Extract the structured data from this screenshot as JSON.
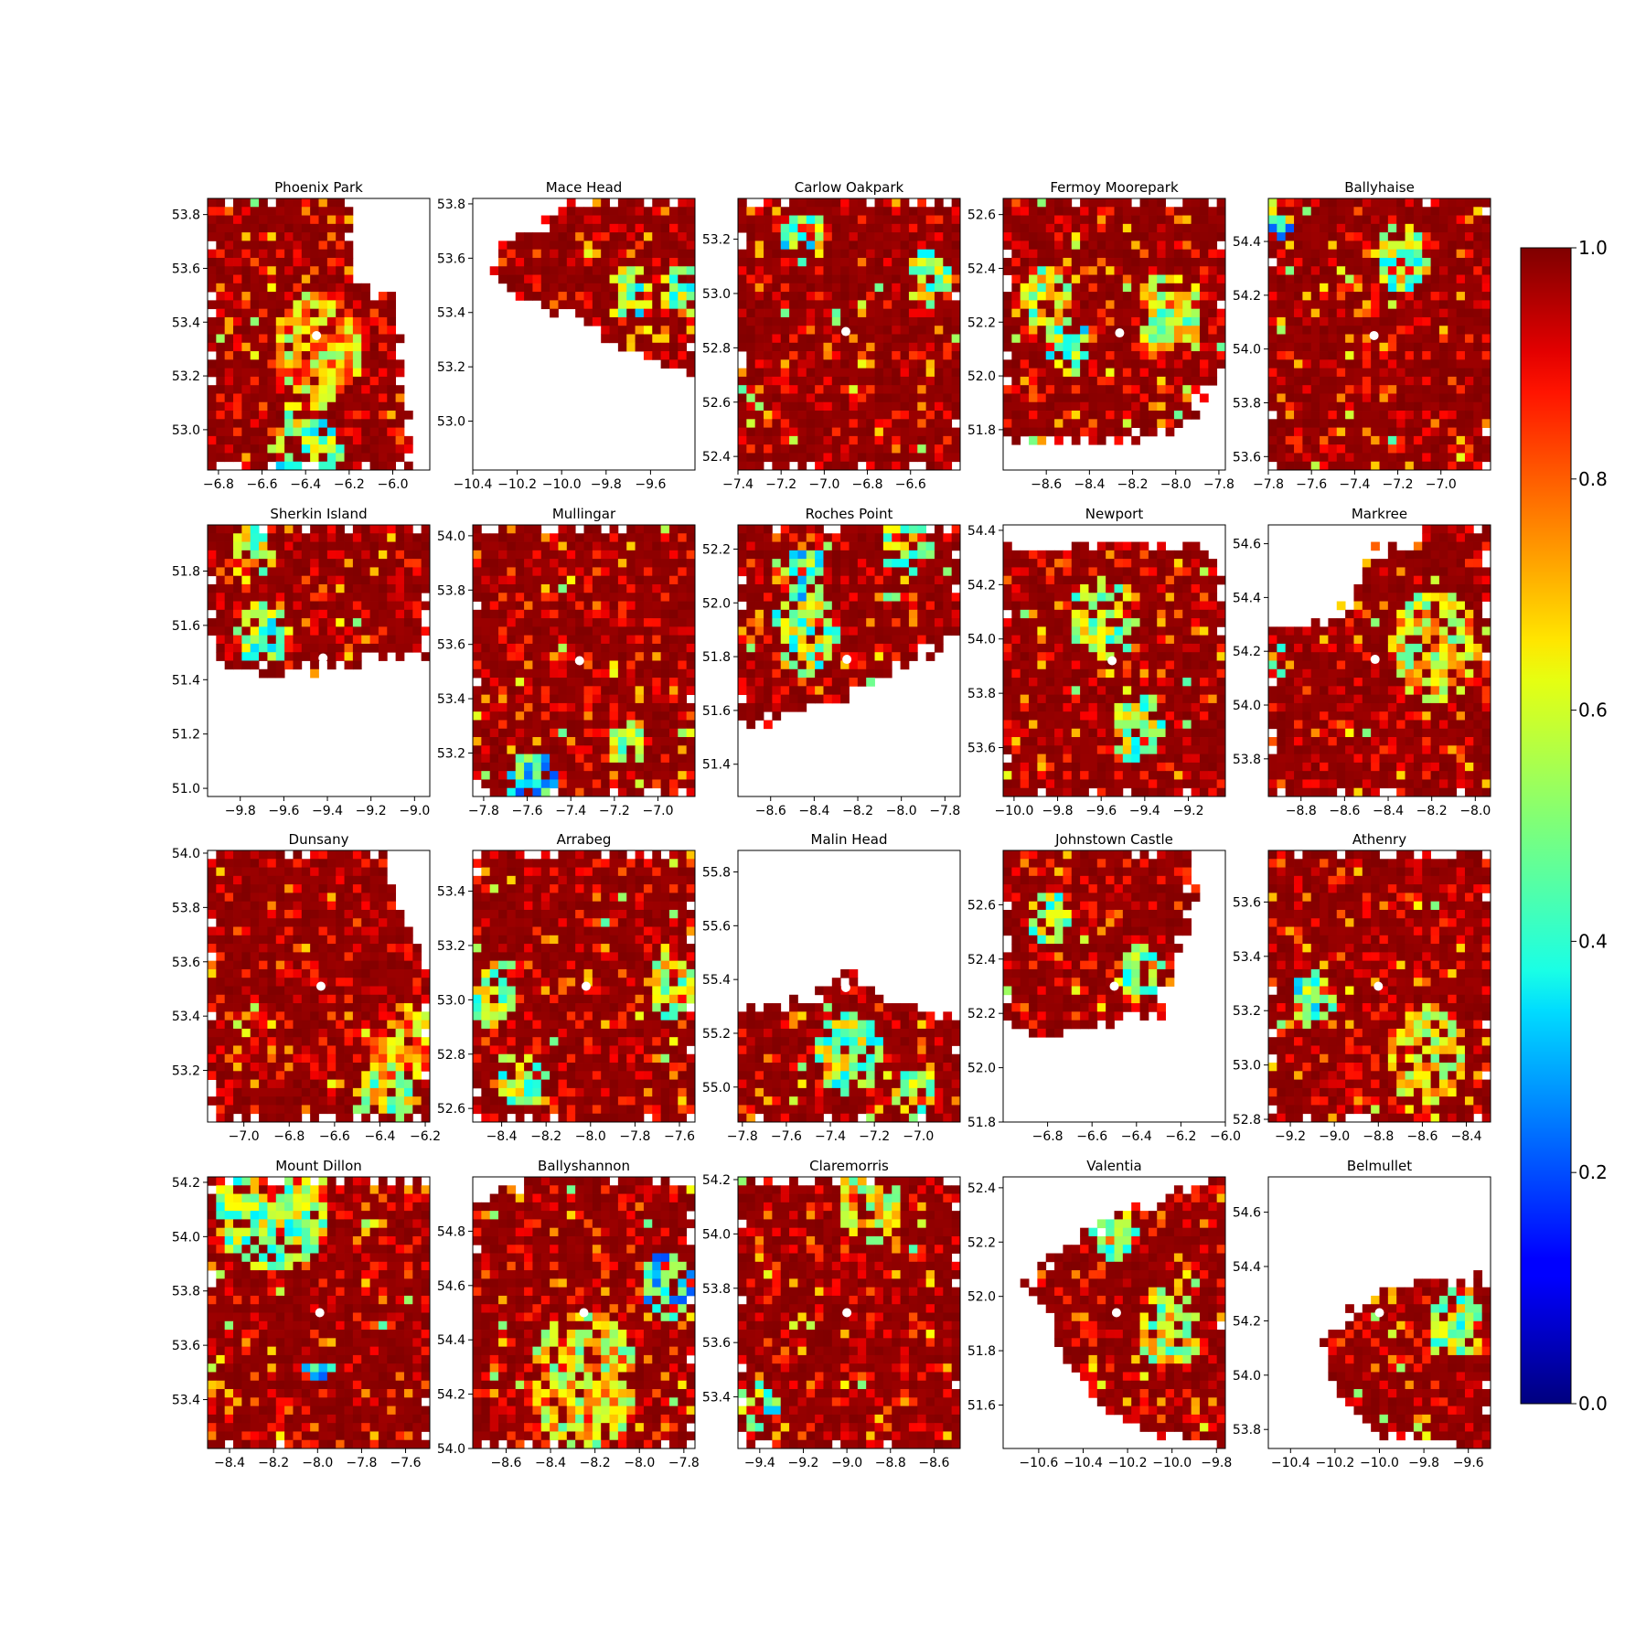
{
  "chart_data": [
    {
      "type": "heatmap",
      "title": "Phoenix Park",
      "xlim": [
        -6.85,
        -5.83
      ],
      "ylim": [
        52.85,
        53.86
      ],
      "xticks": [
        -6.8,
        -6.6,
        -6.4,
        -6.2,
        -6.0
      ],
      "yticks": [
        53.0,
        53.2,
        53.4,
        53.6,
        53.8
      ],
      "station": [
        -6.35,
        53.35
      ],
      "land": [
        [
          0,
          0.0
        ],
        [
          0.64,
          0.0
        ],
        [
          0.64,
          0.33
        ],
        [
          0.85,
          0.35
        ],
        [
          0.85,
          0.6
        ],
        [
          0.92,
          1.0
        ],
        [
          0.0,
          1.0
        ]
      ],
      "hotspots": [
        [
          0.5,
          0.55,
          0.2,
          0.5
        ],
        [
          0.45,
          0.95,
          0.15,
          0.3
        ],
        [
          0.45,
          0.8,
          0.1,
          0.4
        ]
      ]
    },
    {
      "type": "heatmap",
      "title": "Mace Head",
      "xlim": [
        -10.4,
        -9.4
      ],
      "ylim": [
        52.82,
        53.82
      ],
      "xticks": [
        -10.4,
        -10.2,
        -10.0,
        -9.8,
        -9.6
      ],
      "yticks": [
        53.0,
        53.2,
        53.4,
        53.6,
        53.8
      ],
      "station": [
        -9.9,
        53.33
      ],
      "land": [
        [
          0.1,
          0.2
        ],
        [
          0.4,
          0.05
        ],
        [
          0.55,
          0.0
        ],
        [
          1.0,
          0.0
        ],
        [
          1.0,
          0.65
        ],
        [
          0.6,
          0.55
        ],
        [
          0.55,
          0.45
        ],
        [
          0.3,
          0.4
        ],
        [
          0.1,
          0.3
        ]
      ],
      "hotspots": [
        [
          0.7,
          0.35,
          0.1,
          0.3
        ],
        [
          0.95,
          0.35,
          0.1,
          0.35
        ]
      ]
    },
    {
      "type": "heatmap",
      "title": "Carlow Oakpark",
      "xlim": [
        -7.4,
        -6.37
      ],
      "ylim": [
        52.35,
        53.35
      ],
      "xticks": [
        -7.4,
        -7.2,
        -7.0,
        -6.8,
        -6.6
      ],
      "yticks": [
        52.4,
        52.6,
        52.8,
        53.0,
        53.2
      ],
      "station": [
        -6.9,
        52.86
      ],
      "land": [
        [
          0,
          0
        ],
        [
          1,
          0
        ],
        [
          1,
          1
        ],
        [
          0,
          1
        ]
      ],
      "hotspots": [
        [
          0.3,
          0.15,
          0.1,
          0.3
        ],
        [
          0.85,
          0.3,
          0.1,
          0.35
        ]
      ]
    },
    {
      "type": "heatmap",
      "title": "Fermoy Moorepark",
      "xlim": [
        -8.8,
        -7.77
      ],
      "ylim": [
        51.65,
        52.66
      ],
      "xticks": [
        -8.6,
        -8.4,
        -8.2,
        -8.0,
        -7.8
      ],
      "yticks": [
        51.8,
        52.0,
        52.2,
        52.4,
        52.6
      ],
      "station": [
        -8.26,
        52.16
      ],
      "land": [
        [
          0,
          0
        ],
        [
          1,
          0
        ],
        [
          1,
          0.6
        ],
        [
          0.8,
          0.85
        ],
        [
          0.4,
          0.9
        ],
        [
          0.0,
          0.88
        ]
      ],
      "hotspots": [
        [
          0.2,
          0.38,
          0.12,
          0.4
        ],
        [
          0.3,
          0.55,
          0.1,
          0.3
        ],
        [
          0.75,
          0.42,
          0.15,
          0.4
        ]
      ]
    },
    {
      "type": "heatmap",
      "title": "Ballyhaise",
      "xlim": [
        -7.8,
        -6.77
      ],
      "ylim": [
        53.55,
        54.56
      ],
      "xticks": [
        -7.8,
        -7.6,
        -7.4,
        -7.2,
        -7.0
      ],
      "yticks": [
        53.6,
        53.8,
        54.0,
        54.2,
        54.4
      ],
      "station": [
        -7.31,
        54.05
      ],
      "land": [
        [
          0,
          0
        ],
        [
          1,
          0
        ],
        [
          1,
          1
        ],
        [
          0,
          1
        ]
      ],
      "hotspots": [
        [
          0.6,
          0.22,
          0.12,
          0.35
        ],
        [
          0.05,
          0.1,
          0.05,
          0.2
        ]
      ]
    },
    {
      "type": "heatmap",
      "title": "Sherkin Island",
      "xlim": [
        -9.95,
        -8.93
      ],
      "ylim": [
        50.97,
        51.97
      ],
      "xticks": [
        -9.8,
        -9.6,
        -9.4,
        -9.2,
        -9.0
      ],
      "yticks": [
        51.0,
        51.2,
        51.4,
        51.6,
        51.8
      ],
      "station": [
        -9.42,
        51.48
      ],
      "land": [
        [
          0,
          0
        ],
        [
          1,
          0
        ],
        [
          1,
          0.47
        ],
        [
          0.5,
          0.52
        ],
        [
          0.1,
          0.55
        ],
        [
          0.0,
          0.38
        ]
      ],
      "hotspots": [
        [
          0.25,
          0.4,
          0.12,
          0.3
        ],
        [
          0.2,
          0.1,
          0.1,
          0.4
        ]
      ]
    },
    {
      "type": "heatmap",
      "title": "Mullingar",
      "xlim": [
        -7.85,
        -6.83
      ],
      "ylim": [
        53.04,
        54.04
      ],
      "xticks": [
        -7.8,
        -7.6,
        -7.4,
        -7.2,
        -7.0
      ],
      "yticks": [
        53.2,
        53.4,
        53.6,
        53.8,
        54.0
      ],
      "station": [
        -7.36,
        53.54
      ],
      "land": [
        [
          0,
          0
        ],
        [
          1,
          0
        ],
        [
          1,
          1
        ],
        [
          0,
          1
        ]
      ],
      "hotspots": [
        [
          0.28,
          0.95,
          0.12,
          0.2
        ],
        [
          0.7,
          0.8,
          0.08,
          0.4
        ]
      ]
    },
    {
      "type": "heatmap",
      "title": "Roches Point",
      "xlim": [
        -8.75,
        -7.73
      ],
      "ylim": [
        51.28,
        52.29
      ],
      "xticks": [
        -8.6,
        -8.4,
        -8.2,
        -8.0,
        -7.8
      ],
      "yticks": [
        51.4,
        51.6,
        51.8,
        52.0,
        52.2
      ],
      "station": [
        -8.25,
        51.79
      ],
      "land": [
        [
          0,
          0
        ],
        [
          1,
          0
        ],
        [
          1,
          0.4
        ],
        [
          0.6,
          0.58
        ],
        [
          0.3,
          0.7
        ],
        [
          0.0,
          0.75
        ]
      ],
      "hotspots": [
        [
          0.3,
          0.4,
          0.15,
          0.35
        ],
        [
          0.3,
          0.18,
          0.1,
          0.25
        ],
        [
          0.75,
          0.08,
          0.12,
          0.35
        ]
      ]
    },
    {
      "type": "heatmap",
      "title": "Newport",
      "xlim": [
        -10.05,
        -9.03
      ],
      "ylim": [
        53.42,
        54.42
      ],
      "xticks": [
        -10.0,
        -9.8,
        -9.6,
        -9.4,
        -9.2
      ],
      "yticks": [
        53.6,
        53.8,
        54.0,
        54.2,
        54.4
      ],
      "station": [
        -9.55,
        53.92
      ],
      "land": [
        [
          0.0,
          0.1
        ],
        [
          0.3,
          0.08
        ],
        [
          0.9,
          0.08
        ],
        [
          1.0,
          0.2
        ],
        [
          1.0,
          1.0
        ],
        [
          0.0,
          1.0
        ]
      ],
      "hotspots": [
        [
          0.45,
          0.35,
          0.15,
          0.35
        ],
        [
          0.6,
          0.75,
          0.12,
          0.35
        ]
      ]
    },
    {
      "type": "heatmap",
      "title": "Markree",
      "xlim": [
        -8.95,
        -7.93
      ],
      "ylim": [
        53.66,
        54.67
      ],
      "xticks": [
        -8.8,
        -8.6,
        -8.4,
        -8.2,
        -8.0
      ],
      "yticks": [
        53.8,
        54.0,
        54.2,
        54.4,
        54.6
      ],
      "station": [
        -8.46,
        54.17
      ],
      "land": [
        [
          0,
          0.4
        ],
        [
          0.3,
          0.35
        ],
        [
          0.5,
          0.1
        ],
        [
          0.8,
          0.0
        ],
        [
          1,
          0
        ],
        [
          1,
          1
        ],
        [
          0,
          1
        ]
      ],
      "hotspots": [
        [
          0.75,
          0.45,
          0.2,
          0.45
        ],
        [
          0.05,
          0.5,
          0.05,
          0.4
        ]
      ]
    },
    {
      "type": "heatmap",
      "title": "Dunsany",
      "xlim": [
        -7.16,
        -6.18
      ],
      "ylim": [
        53.01,
        54.01
      ],
      "xticks": [
        -7.0,
        -6.8,
        -6.6,
        -6.4,
        -6.2
      ],
      "yticks": [
        53.2,
        53.4,
        53.6,
        53.8,
        54.0
      ],
      "station": [
        -6.66,
        53.51
      ],
      "land": [
        [
          0,
          0
        ],
        [
          0.8,
          0.0
        ],
        [
          0.85,
          0.2
        ],
        [
          0.95,
          0.35
        ],
        [
          1,
          0.45
        ],
        [
          1,
          1
        ],
        [
          0,
          1
        ]
      ],
      "hotspots": [
        [
          0.88,
          0.72,
          0.15,
          0.55
        ],
        [
          0.8,
          0.9,
          0.12,
          0.4
        ]
      ]
    },
    {
      "type": "heatmap",
      "title": "Arrabeg",
      "xlim": [
        -8.53,
        -7.53
      ],
      "ylim": [
        52.55,
        53.55
      ],
      "xticks": [
        -8.4,
        -8.2,
        -8.0,
        -7.8,
        -7.6
      ],
      "yticks": [
        52.6,
        52.8,
        53.0,
        53.2,
        53.4
      ],
      "station": [
        -8.02,
        53.05
      ],
      "land": [
        [
          0,
          0
        ],
        [
          1,
          0
        ],
        [
          1,
          1
        ],
        [
          0,
          1
        ]
      ],
      "hotspots": [
        [
          0.9,
          0.5,
          0.12,
          0.4
        ],
        [
          0.08,
          0.55,
          0.1,
          0.35
        ],
        [
          0.22,
          0.85,
          0.1,
          0.35
        ]
      ]
    },
    {
      "type": "heatmap",
      "title": "Malin Head",
      "xlim": [
        -7.82,
        -6.81
      ],
      "ylim": [
        54.87,
        55.88
      ],
      "xticks": [
        -7.8,
        -7.6,
        -7.4,
        -7.2,
        -7.0
      ],
      "yticks": [
        55.0,
        55.2,
        55.4,
        55.6,
        55.8
      ],
      "station": [
        -7.33,
        55.37
      ],
      "land": [
        [
          0,
          0.6
        ],
        [
          0.3,
          0.55
        ],
        [
          0.5,
          0.45
        ],
        [
          0.7,
          0.55
        ],
        [
          1.0,
          0.62
        ],
        [
          1.0,
          1.0
        ],
        [
          0.0,
          1.0
        ]
      ],
      "hotspots": [
        [
          0.5,
          0.75,
          0.15,
          0.35
        ],
        [
          0.8,
          0.9,
          0.1,
          0.35
        ]
      ]
    },
    {
      "type": "heatmap",
      "title": "Johnstown Castle",
      "xlim": [
        -7.0,
        -6.0
      ],
      "ylim": [
        51.8,
        52.8
      ],
      "xticks": [
        -6.8,
        -6.6,
        -6.4,
        -6.2,
        -6.0
      ],
      "yticks": [
        51.8,
        52.0,
        52.2,
        52.4,
        52.6
      ],
      "station": [
        -6.5,
        52.3
      ],
      "land": [
        [
          0,
          0
        ],
        [
          0.88,
          0.0
        ],
        [
          0.82,
          0.3
        ],
        [
          0.7,
          0.6
        ],
        [
          0.4,
          0.65
        ],
        [
          0.1,
          0.68
        ],
        [
          0.0,
          0.6
        ]
      ],
      "hotspots": [
        [
          0.2,
          0.25,
          0.1,
          0.35
        ],
        [
          0.6,
          0.45,
          0.1,
          0.35
        ]
      ]
    },
    {
      "type": "heatmap",
      "title": "Athenry",
      "xlim": [
        -9.3,
        -8.29
      ],
      "ylim": [
        52.79,
        53.79
      ],
      "xticks": [
        -9.2,
        -9.0,
        -8.8,
        -8.6,
        -8.4
      ],
      "yticks": [
        52.8,
        53.0,
        53.2,
        53.4,
        53.6
      ],
      "station": [
        -8.8,
        53.29
      ],
      "land": [
        [
          0,
          0
        ],
        [
          1,
          0
        ],
        [
          1,
          1
        ],
        [
          0,
          1
        ]
      ],
      "hotspots": [
        [
          0.72,
          0.75,
          0.18,
          0.45
        ],
        [
          0.2,
          0.55,
          0.1,
          0.3
        ]
      ]
    },
    {
      "type": "heatmap",
      "title": "Mount Dillon",
      "xlim": [
        -8.5,
        -7.49
      ],
      "ylim": [
        53.22,
        54.22
      ],
      "xticks": [
        -8.4,
        -8.2,
        -8.0,
        -7.8,
        -7.6
      ],
      "yticks": [
        53.4,
        53.6,
        53.8,
        54.0,
        54.2
      ],
      "station": [
        -7.99,
        53.72
      ],
      "land": [
        [
          0,
          0
        ],
        [
          1,
          0
        ],
        [
          1,
          1
        ],
        [
          0,
          1
        ]
      ],
      "hotspots": [
        [
          0.3,
          0.1,
          0.25,
          0.35
        ],
        [
          0.5,
          0.7,
          0.06,
          0.2
        ]
      ]
    },
    {
      "type": "heatmap",
      "title": "Ballyshannon",
      "xlim": [
        -8.75,
        -7.75
      ],
      "ylim": [
        54.0,
        55.0
      ],
      "xticks": [
        -8.6,
        -8.4,
        -8.2,
        -8.0,
        -7.8
      ],
      "yticks": [
        54.0,
        54.2,
        54.4,
        54.6,
        54.8
      ],
      "station": [
        -8.25,
        54.5
      ],
      "land": [
        [
          0.0,
          0.1
        ],
        [
          0.3,
          0.0
        ],
        [
          1,
          0
        ],
        [
          1,
          1
        ],
        [
          0,
          1
        ]
      ],
      "hotspots": [
        [
          0.88,
          0.4,
          0.12,
          0.2
        ],
        [
          0.5,
          0.75,
          0.25,
          0.45
        ]
      ]
    },
    {
      "type": "heatmap",
      "title": "Claremorris",
      "xlim": [
        -9.5,
        -8.48
      ],
      "ylim": [
        53.21,
        54.21
      ],
      "xticks": [
        -9.4,
        -9.2,
        -9.0,
        -8.8,
        -8.6
      ],
      "yticks": [
        53.4,
        53.6,
        53.8,
        54.0,
        54.2
      ],
      "station": [
        -9.0,
        53.71
      ],
      "land": [
        [
          0,
          0
        ],
        [
          1,
          0
        ],
        [
          1,
          1
        ],
        [
          0,
          1
        ]
      ],
      "hotspots": [
        [
          0.08,
          0.85,
          0.1,
          0.3
        ],
        [
          0.6,
          0.1,
          0.15,
          0.45
        ]
      ]
    },
    {
      "type": "heatmap",
      "title": "Valentia",
      "xlim": [
        -10.76,
        -9.76
      ],
      "ylim": [
        51.44,
        52.44
      ],
      "xticks": [
        -10.6,
        -10.4,
        -10.2,
        -10.0,
        -9.8
      ],
      "yticks": [
        51.6,
        51.8,
        52.0,
        52.2,
        52.4
      ],
      "station": [
        -10.25,
        51.94
      ],
      "land": [
        [
          0.1,
          0.4
        ],
        [
          0.5,
          0.15
        ],
        [
          0.85,
          0.05
        ],
        [
          1.0,
          0.0
        ],
        [
          1.0,
          1.0
        ],
        [
          0.5,
          0.9
        ],
        [
          0.3,
          0.7
        ],
        [
          0.2,
          0.5
        ]
      ],
      "hotspots": [
        [
          0.75,
          0.55,
          0.15,
          0.4
        ],
        [
          0.5,
          0.2,
          0.1,
          0.35
        ]
      ]
    },
    {
      "type": "heatmap",
      "title": "Belmullet",
      "xlim": [
        -10.5,
        -9.5
      ],
      "ylim": [
        53.73,
        54.73
      ],
      "xticks": [
        -10.4,
        -10.2,
        -10.0,
        -9.8,
        -9.6
      ],
      "yticks": [
        53.8,
        54.0,
        54.2,
        54.4,
        54.6
      ],
      "station": [
        -10.0,
        54.23
      ],
      "land": [
        [
          0.25,
          0.6
        ],
        [
          0.45,
          0.45
        ],
        [
          0.7,
          0.38
        ],
        [
          1.0,
          0.38
        ],
        [
          1.0,
          1.0
        ],
        [
          0.5,
          0.95
        ],
        [
          0.3,
          0.8
        ]
      ],
      "hotspots": [
        [
          0.85,
          0.55,
          0.12,
          0.35
        ],
        [
          0.48,
          0.45,
          0.05,
          0.35
        ]
      ]
    }
  ],
  "colorbar": {
    "range": [
      0.0,
      1.0
    ],
    "ticks": [
      "0.0",
      "0.2",
      "0.4",
      "0.6",
      "0.8",
      "1.0"
    ],
    "colormap": "jet"
  },
  "colors": {
    "station_marker": "#ffffff",
    "base_cell": "#800000"
  }
}
